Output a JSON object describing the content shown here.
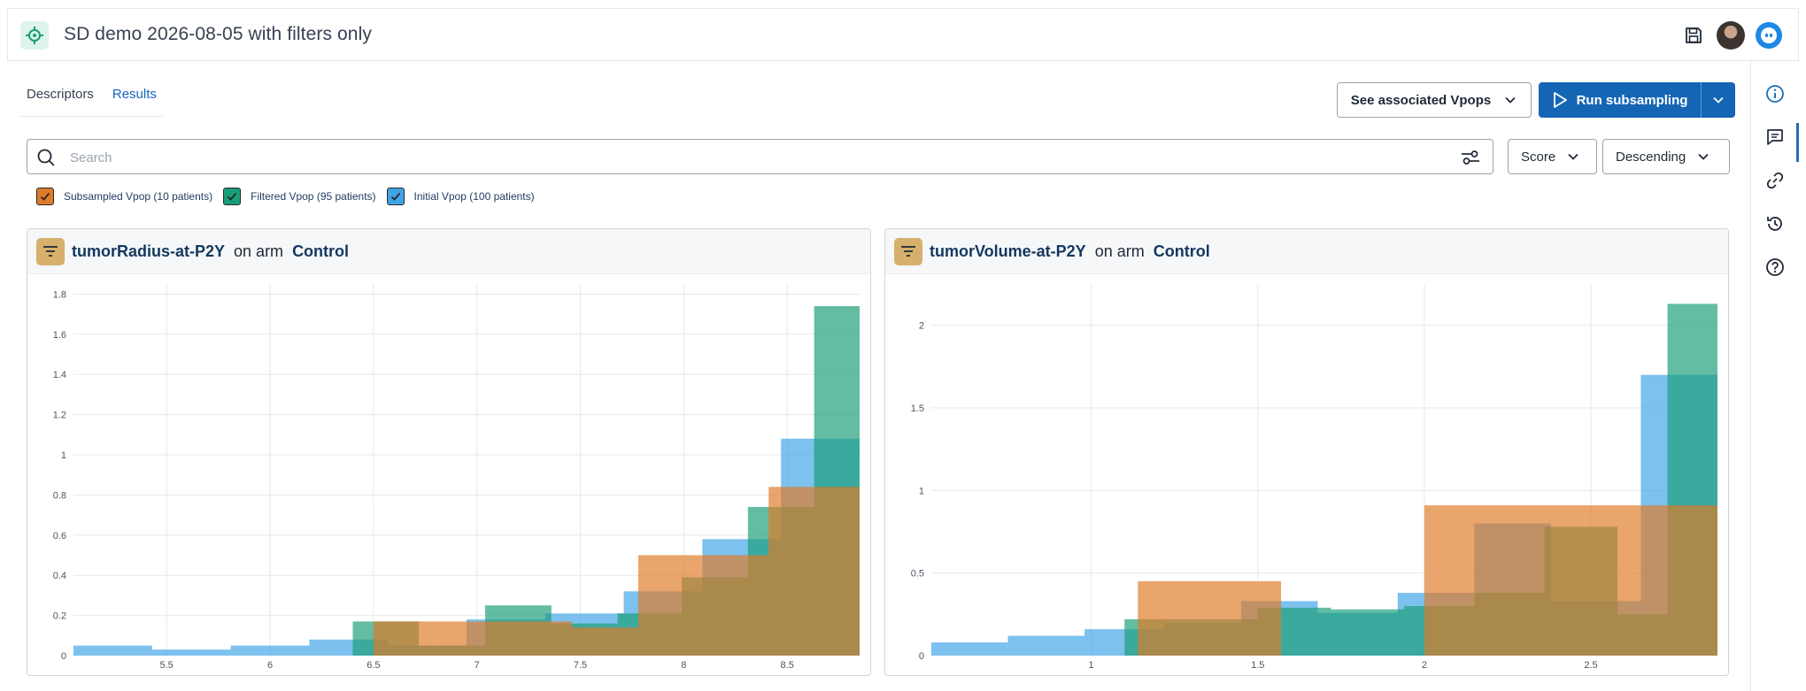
{
  "header": {
    "title": "SD demo 2026-08-05 with filters only"
  },
  "tabs": [
    {
      "label": "Descriptors",
      "active": false
    },
    {
      "label": "Results",
      "active": true
    }
  ],
  "actions": {
    "vpops_label": "See associated Vpops",
    "run_label": "Run subsampling"
  },
  "search": {
    "placeholder": "Search",
    "value": ""
  },
  "sort": {
    "field": "Score",
    "order": "Descending"
  },
  "legend": [
    {
      "label": "Subsampled Vpop (10 patients)",
      "color": "#e07b27",
      "checked": true
    },
    {
      "label": "Filtered Vpop (95 patients)",
      "color": "#1a9e77",
      "checked": true
    },
    {
      "label": "Initial Vpop (100 patients)",
      "color": "#3fa3e6",
      "checked": true
    }
  ],
  "cards": [
    {
      "variable": "tumorRadius-at-P2Y",
      "connector": "on arm",
      "arm": "Control"
    },
    {
      "variable": "tumorVolume-at-P2Y",
      "connector": "on arm",
      "arm": "Control"
    }
  ],
  "chart_data": [
    {
      "type": "bar",
      "title": "",
      "xlabel": "",
      "ylabel": "",
      "xlim": [
        5.05,
        8.85
      ],
      "ylim": [
        0,
        1.85
      ],
      "x_ticks": [
        "5.5",
        "6",
        "6.5",
        "7",
        "7.5",
        "8",
        "8.5"
      ],
      "y_ticks": [
        "0",
        "0.2",
        "0.4",
        "0.6",
        "0.8",
        "1",
        "1.2",
        "1.4",
        "1.6",
        "1.8"
      ],
      "grid": true,
      "series": [
        {
          "name": "Initial Vpop (100 patients)",
          "color": "#3fa3e6",
          "bins": [
            [
              5.05,
              5.43,
              0.05
            ],
            [
              5.43,
              5.81,
              0.03
            ],
            [
              5.81,
              6.19,
              0.05
            ],
            [
              6.19,
              6.57,
              0.08
            ],
            [
              6.57,
              6.95,
              0.05
            ],
            [
              6.95,
              7.33,
              0.18
            ],
            [
              7.33,
              7.71,
              0.21
            ],
            [
              7.71,
              8.09,
              0.32
            ],
            [
              8.09,
              8.47,
              0.58
            ],
            [
              8.47,
              8.85,
              1.08
            ]
          ]
        },
        {
          "name": "Filtered Vpop (95 patients)",
          "color": "#1a9e77",
          "bins": [
            [
              6.4,
              6.72,
              0.17
            ],
            [
              6.72,
              7.04,
              0.05
            ],
            [
              7.04,
              7.36,
              0.25
            ],
            [
              7.36,
              7.68,
              0.16
            ],
            [
              7.68,
              7.99,
              0.21
            ],
            [
              7.99,
              8.31,
              0.39
            ],
            [
              8.31,
              8.63,
              0.74
            ],
            [
              8.63,
              8.85,
              1.74
            ]
          ]
        },
        {
          "name": "Subsampled Vpop (10 patients)",
          "color": "#e07b27",
          "bins": [
            [
              6.5,
              6.82,
              0.17
            ],
            [
              6.82,
              7.14,
              0.17
            ],
            [
              7.14,
              7.46,
              0.17
            ],
            [
              7.46,
              7.78,
              0.14
            ],
            [
              7.78,
              8.09,
              0.5
            ],
            [
              8.09,
              8.41,
              0.5
            ],
            [
              8.41,
              8.63,
              0.84
            ],
            [
              8.63,
              8.85,
              0.84
            ]
          ]
        }
      ]
    },
    {
      "type": "bar",
      "title": "",
      "xlabel": "",
      "ylabel": "",
      "xlim": [
        0.52,
        2.88
      ],
      "ylim": [
        0,
        2.25
      ],
      "x_ticks": [
        "1",
        "1.5",
        "2",
        "2.5"
      ],
      "y_ticks": [
        "0",
        "0.5",
        "1",
        "1.5",
        "2"
      ],
      "grid": true,
      "series": [
        {
          "name": "Initial Vpop (100 patients)",
          "color": "#3fa3e6",
          "bins": [
            [
              0.52,
              0.75,
              0.08
            ],
            [
              0.75,
              0.98,
              0.12
            ],
            [
              0.98,
              1.22,
              0.16
            ],
            [
              1.22,
              1.45,
              0.2
            ],
            [
              1.45,
              1.68,
              0.33
            ],
            [
              1.68,
              1.92,
              0.26
            ],
            [
              1.92,
              2.15,
              0.38
            ],
            [
              2.15,
              2.38,
              0.8
            ],
            [
              2.38,
              2.65,
              0.33
            ],
            [
              2.65,
              2.88,
              1.7
            ]
          ]
        },
        {
          "name": "Filtered Vpop (95 patients)",
          "color": "#1a9e77",
          "bins": [
            [
              1.1,
              1.3,
              0.22
            ],
            [
              1.3,
              1.5,
              0.22
            ],
            [
              1.5,
              1.72,
              0.29
            ],
            [
              1.72,
              1.94,
              0.28
            ],
            [
              1.94,
              2.15,
              0.3
            ],
            [
              2.15,
              2.36,
              0.38
            ],
            [
              2.36,
              2.58,
              0.78
            ],
            [
              2.58,
              2.73,
              0.25
            ],
            [
              2.73,
              2.88,
              2.13
            ]
          ]
        },
        {
          "name": "Subsampled Vpop (10 patients)",
          "color": "#e07b27",
          "bins": [
            [
              1.14,
              1.57,
              0.45
            ],
            [
              2.0,
              2.65,
              0.91
            ],
            [
              2.65,
              2.88,
              0.91
            ]
          ]
        }
      ]
    }
  ]
}
